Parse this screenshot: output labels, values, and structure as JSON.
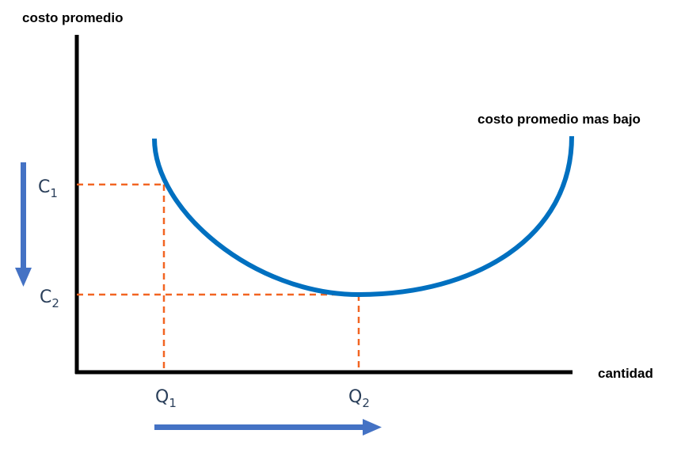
{
  "labels": {
    "y_axis": "costo promedio",
    "x_axis": "cantidad",
    "curve_annotation": "costo promedio mas bajo",
    "c1": {
      "main": "C",
      "sub": "1"
    },
    "c2": {
      "main": "C",
      "sub": "2"
    },
    "q1": {
      "main": "Q",
      "sub": "1"
    },
    "q2": {
      "main": "Q",
      "sub": "2"
    }
  },
  "colors": {
    "axis": "#000000",
    "curve": "#0070c0",
    "guide": "#f26522",
    "arrow": "#4472c4"
  },
  "icons": {
    "down_arrow": "arrow-down",
    "right_arrow": "arrow-right"
  }
}
